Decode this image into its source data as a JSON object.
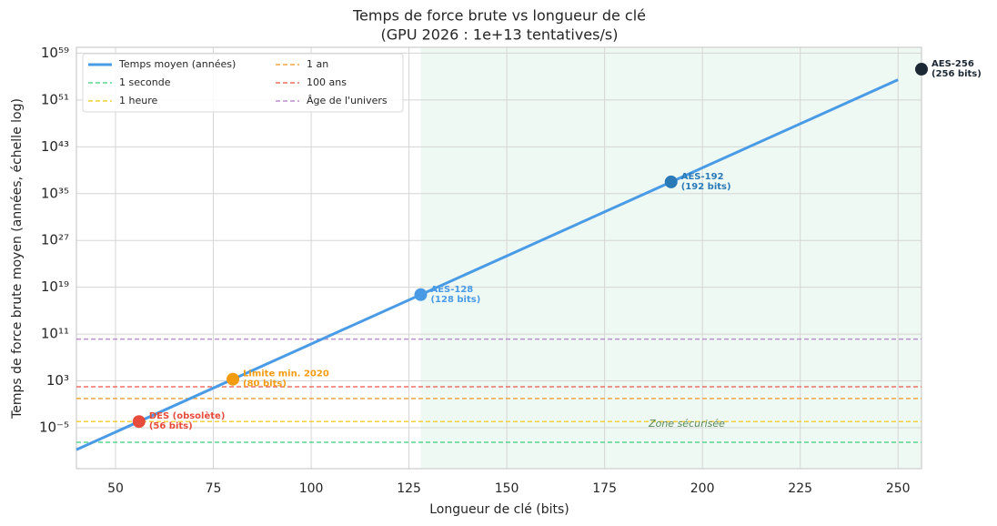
{
  "chart_data": {
    "type": "line",
    "title": "Temps de force brute vs longueur de clé",
    "subtitle": "(GPU 2026 : 1e+13 tentatives/s)",
    "x_label": "Longueur de clé (bits)",
    "y_label": "Temps de force brute moyen (années, échelle log)",
    "log_y": true,
    "grid": true,
    "legend": "upper left",
    "xlim": [
      40,
      256
    ],
    "ylim": [
      1e-12,
      1e+60
    ],
    "xticks": [
      50,
      75,
      100,
      125,
      150,
      175,
      200,
      225,
      250
    ],
    "yticks": [
      {
        "value": 1e-05,
        "label": "10⁻⁵"
      },
      {
        "value": 1000.0,
        "label": "10³"
      },
      {
        "value": 100000000000.0,
        "label": "10¹¹"
      },
      {
        "value": 1e+19,
        "label": "10¹⁹"
      },
      {
        "value": 1e+27,
        "label": "10²⁷"
      },
      {
        "value": 1e+35,
        "label": "10³⁵"
      },
      {
        "value": 1e+43,
        "label": "10⁴³"
      },
      {
        "value": 1e+51,
        "label": "10⁵¹"
      },
      {
        "value": 1e+59,
        "label": "10⁵⁹"
      }
    ],
    "x": [
      40,
      100,
      150,
      200,
      250
    ],
    "series": [
      {
        "name": "Temps moyen (années)",
        "color": "#4a9be6",
        "values": [
          1.74e-09,
          2010000000.0,
          2.26e+24,
          2.55e+39,
          2.87e+54
        ]
      }
    ],
    "hlines": [
      {
        "name": "1 seconde",
        "value": 3.17e-08,
        "color": "#58d68d"
      },
      {
        "name": "1 heure",
        "value": 0.000114,
        "color": "#f4d03f"
      },
      {
        "name": "1 an",
        "value": 1,
        "color": "#f5a742"
      },
      {
        "name": "100 ans",
        "value": 100,
        "color": "#ec7063"
      },
      {
        "name": "Âge de l'univers",
        "value": 13800000000.0,
        "color": "#bb8fce"
      }
    ],
    "points": [
      {
        "name": "DES (obsolète)",
        "sub": "(56 bits)",
        "x": 56,
        "y": 0.000114,
        "color": "#e74c3c"
      },
      {
        "name": "Limite min. 2020",
        "sub": "(80 bits)",
        "x": 80,
        "y": 1920.0,
        "color": "#f39c12"
      },
      {
        "name": "AES-128",
        "sub": "(128 bits)",
        "x": 128,
        "y": 5.39e+17,
        "color": "#4a9be6"
      },
      {
        "name": "AES-192",
        "sub": "(192 bits)",
        "x": 192,
        "y": 9.95e+36,
        "color": "#2a7ab8"
      },
      {
        "name": "AES-256",
        "sub": "(256 bits)",
        "x": 256,
        "y": 1.84e+56,
        "color": "#1c2833"
      }
    ],
    "secure_zone": {
      "from": 128,
      "label": "Zone sécurisée",
      "color": "#e8f7ee"
    }
  }
}
